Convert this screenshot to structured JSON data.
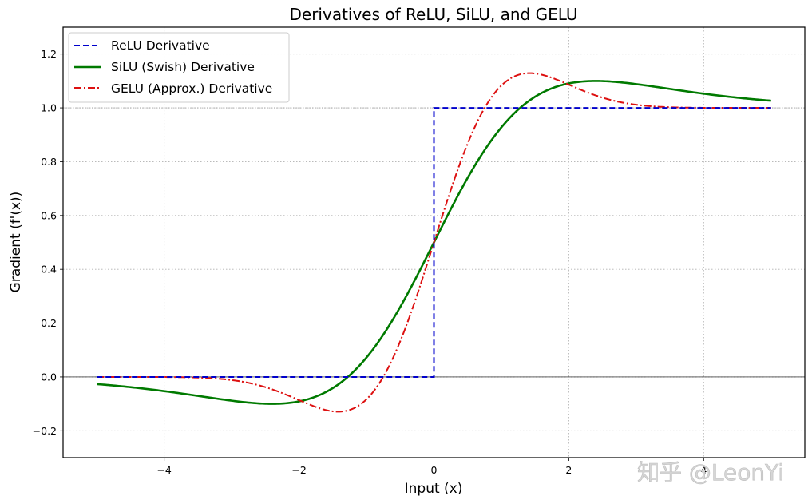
{
  "chart_data": {
    "type": "line",
    "title": "Derivatives of ReLU, SiLU, and GELU",
    "xlabel": "Input (x)",
    "ylabel": "Gradient (f'(x))",
    "xlim": [
      -5.5,
      5.5
    ],
    "ylim": [
      -0.3,
      1.3
    ],
    "xticks": [
      -4,
      -2,
      0,
      2,
      4
    ],
    "xtick_labels": [
      "−4",
      "−2",
      "0",
      "2",
      "4"
    ],
    "yticks": [
      -0.2,
      0.0,
      0.2,
      0.4,
      0.6,
      0.8,
      1.0,
      1.2
    ],
    "ytick_labels": [
      "−0.2",
      "0.0",
      "0.2",
      "0.4",
      "0.6",
      "0.8",
      "1.0",
      "1.2"
    ],
    "grid": true,
    "reference_lines": {
      "y": [
        0.0,
        1.0
      ],
      "x": [
        0.0
      ]
    },
    "legend_position": "upper left",
    "x": [
      -5,
      -4.5,
      -4,
      -3.5,
      -3,
      -2.5,
      -2,
      -1.5,
      -1,
      -0.5,
      0,
      0.5,
      1,
      1.5,
      2,
      2.5,
      3,
      3.5,
      4,
      4.5,
      5
    ],
    "series": [
      {
        "name": "ReLU Derivative",
        "color": "#0000cc",
        "style": "dashed",
        "values": [
          0,
          0,
          0,
          0,
          0,
          0,
          0,
          0,
          0,
          0,
          0.5,
          1,
          1,
          1,
          1,
          1,
          1,
          1,
          1,
          1,
          1
        ]
      },
      {
        "name": "SiLU (Swish) Derivative",
        "color": "#007a00",
        "style": "solid",
        "values": [
          -0.027,
          -0.039,
          -0.053,
          -0.071,
          -0.088,
          -0.099,
          -0.091,
          -0.05,
          0.072,
          0.26,
          0.5,
          0.74,
          0.928,
          1.05,
          1.091,
          1.099,
          1.088,
          1.071,
          1.053,
          1.039,
          1.027
        ]
      },
      {
        "name": "GELU (Approx.) Derivative",
        "color": "#dd1111",
        "style": "dashdot",
        "values": [
          0.0,
          0.0,
          -0.0003,
          -0.002,
          -0.012,
          -0.04,
          -0.086,
          -0.128,
          -0.083,
          0.133,
          0.5,
          0.867,
          1.083,
          1.128,
          1.086,
          1.04,
          1.012,
          1.002,
          1.0003,
          1.0,
          1.0
        ]
      }
    ]
  },
  "legend": {
    "items": [
      {
        "label": "ReLU Derivative"
      },
      {
        "label": "SiLU (Swish) Derivative"
      },
      {
        "label": "GELU (Approx.) Derivative"
      }
    ]
  },
  "watermark": {
    "text": "知乎 @LeonYi"
  }
}
